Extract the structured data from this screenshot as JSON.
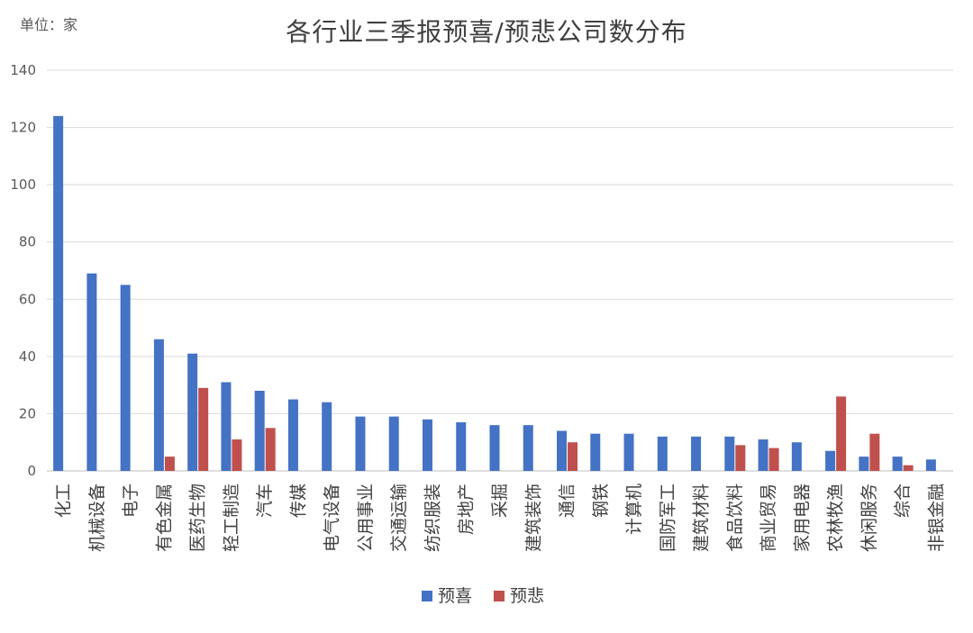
{
  "chart_data": {
    "type": "bar",
    "title": "各行业三季报预喜/预悲公司数分布",
    "unit_label": "单位：家",
    "xlabel": "",
    "ylabel": "",
    "ylim": [
      0,
      140
    ],
    "yticks": [
      0,
      20,
      40,
      60,
      80,
      100,
      120,
      140
    ],
    "grid": true,
    "legend_position": "bottom-center",
    "categories": [
      "化工",
      "机械设备",
      "电子",
      "有色金属",
      "医药生物",
      "轻工制造",
      "汽车",
      "传媒",
      "电气设备",
      "公用事业",
      "交通运输",
      "纺织服装",
      "房地产",
      "采掘",
      "建筑装饰",
      "通信",
      "钢铁",
      "计算机",
      "国防军工",
      "建筑材料",
      "食品饮料",
      "商业贸易",
      "家用电器",
      "农林牧渔",
      "休闲服务",
      "综合",
      "非银金融"
    ],
    "series": [
      {
        "name": "预喜",
        "color": "#4472C4",
        "values": [
          124,
          69,
          65,
          46,
          41,
          31,
          28,
          25,
          24,
          19,
          19,
          18,
          17,
          16,
          16,
          14,
          13,
          13,
          12,
          12,
          12,
          11,
          10,
          7,
          5,
          5,
          4
        ]
      },
      {
        "name": "预悲",
        "color": "#C0504D",
        "values": [
          0,
          0,
          0,
          5,
          29,
          11,
          15,
          0,
          0,
          0,
          0,
          0,
          0,
          0,
          0,
          10,
          0,
          0,
          0,
          0,
          9,
          8,
          0,
          26,
          13,
          2,
          0
        ]
      }
    ]
  }
}
